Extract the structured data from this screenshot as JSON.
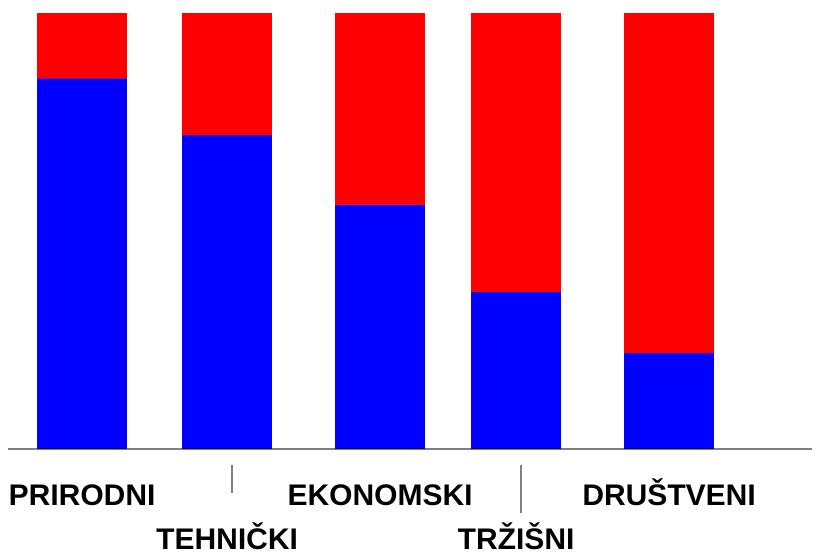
{
  "chart_data": {
    "type": "bar",
    "stacked": true,
    "categories": [
      "PRIRODNI",
      "TEHNIČKI",
      "EKONOMSKI",
      "TRŽIŠNI",
      "DRUŠTVENI"
    ],
    "series": [
      {
        "values": [
          85,
          72,
          56,
          36,
          22
        ],
        "color": "#0000ff"
      },
      {
        "values": [
          15,
          28,
          44,
          64,
          78
        ],
        "color": "#ff0000"
      }
    ],
    "ylim": [
      0,
      100
    ],
    "grid": false,
    "legend": "none",
    "title": "",
    "xlabel": "",
    "ylabel": ""
  }
}
